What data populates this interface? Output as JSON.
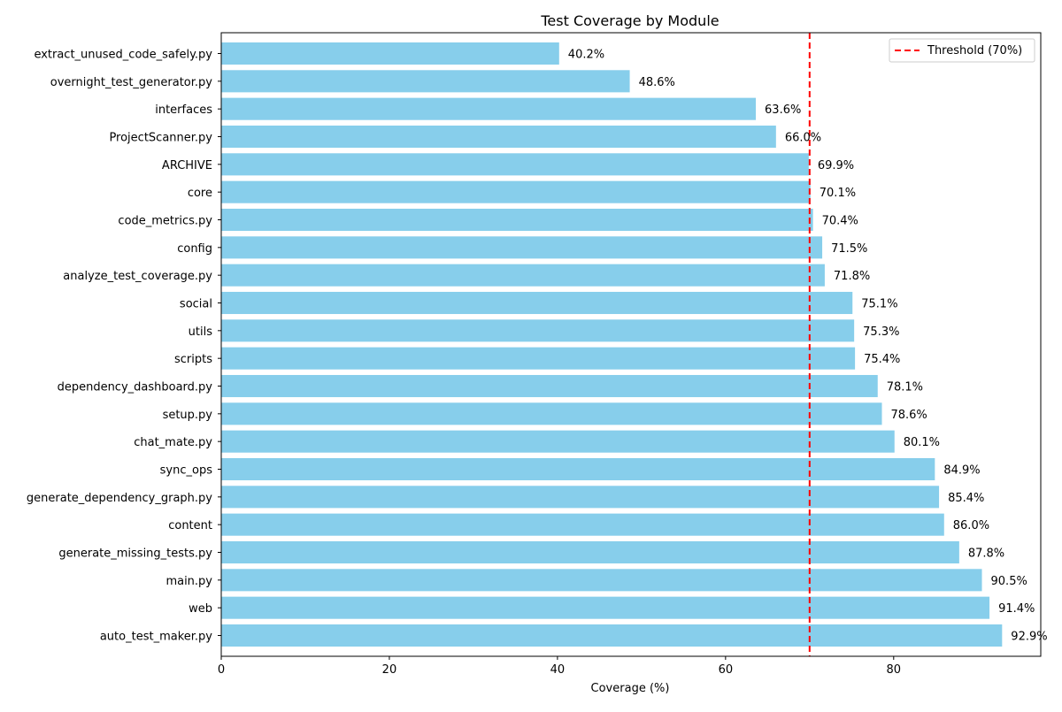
{
  "chart_data": {
    "type": "bar",
    "orientation": "horizontal",
    "title": "Test Coverage by Module",
    "xlabel": "Coverage (%)",
    "ylabel": "",
    "xlim": [
      0,
      97.5
    ],
    "xticks": [
      0,
      20,
      40,
      60,
      80
    ],
    "grid": false,
    "legend_position": "top-right",
    "bar_color": "#87ceeb",
    "threshold": {
      "value": 70,
      "label": "Threshold (70%)",
      "color": "#ff0000",
      "style": "dashed"
    },
    "categories": [
      "extract_unused_code_safely.py",
      "overnight_test_generator.py",
      "interfaces",
      "ProjectScanner.py",
      "ARCHIVE",
      "core",
      "code_metrics.py",
      "config",
      "analyze_test_coverage.py",
      "social",
      "utils",
      "scripts",
      "dependency_dashboard.py",
      "setup.py",
      "chat_mate.py",
      "sync_ops",
      "generate_dependency_graph.py",
      "content",
      "generate_missing_tests.py",
      "main.py",
      "web",
      "auto_test_maker.py"
    ],
    "values": [
      40.2,
      48.6,
      63.6,
      66.0,
      69.9,
      70.1,
      70.4,
      71.5,
      71.8,
      75.1,
      75.3,
      75.4,
      78.1,
      78.6,
      80.1,
      84.9,
      85.4,
      86.0,
      87.8,
      90.5,
      91.4,
      92.9
    ],
    "value_labels": [
      "40.2%",
      "48.6%",
      "63.6%",
      "66.0%",
      "69.9%",
      "70.1%",
      "70.4%",
      "71.5%",
      "71.8%",
      "75.1%",
      "75.3%",
      "75.4%",
      "78.1%",
      "78.6%",
      "80.1%",
      "84.9%",
      "85.4%",
      "86.0%",
      "87.8%",
      "90.5%",
      "91.4%",
      "92.9%"
    ]
  }
}
